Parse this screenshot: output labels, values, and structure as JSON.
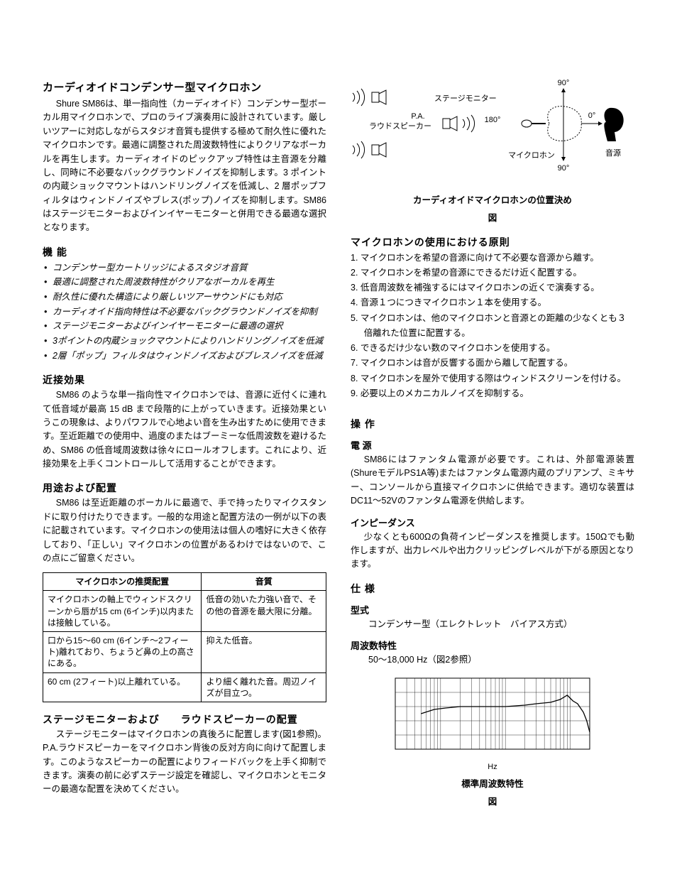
{
  "left": {
    "title0": "カーディオイドコンデンサー型マイクロホン",
    "para0": "Shure SM86は、単一指向性（カーディオイド）コンデンサー型ボーカル用マイクロホンで、プロのライブ演奏用に設計されています。厳しいツアーに対応しながらスタジオ音質も提供する極めて耐久性に優れたマイクロホンです。最適に調整された周波数特性によりクリアなボーカルを再生します。カーディオイドのピックアップ特性は主音源を分離し、同時に不必要なバックグラウンドノイズを抑制します。3 ポイントの内蔵ショックマウントはハンドリングノイズを低減し、2 層ポップフィルタはウィンドノイズやブレス(ポップ)ノイズを抑制します。SM86 はステージモニターおよびインイヤーモニターと併用できる最適な選択となります。",
    "title1": "機 能",
    "features": [
      "コンデンサー型カートリッジによるスタジオ音質",
      "最適に調整された周波数特性がクリアなボーカルを再生",
      "耐久性に優れた構造により厳しいツアーサウンドにも対応",
      "カーディオイド指向特性は不必要なバックグラウンドノイズを抑制",
      "ステージモニターおよびインイヤーモニターに最適の選択",
      "3ポイントの内蔵ショックマウントによりハンドリングノイズを低減",
      "2層「ポップ」フィルタはウィンドノイズおよびブレスノイズを低減"
    ],
    "title2": "近接効果",
    "para2": "SM86 のような単一指向性マイクロホンでは、音源に近付くに連れて低音域が最高 15 dB まで段階的に上がっていきます。近接効果というこの現象は、よりパワフルで心地よい音を生み出すために使用できます。至近距離での使用中、過度のまたはブーミーな低周波数を避けるため、SM86 の低音域周波数は徐々にロールオフします。これにより、近接効果を上手くコントロールして活用することができます。",
    "title3": "用途および配置",
    "para3": "SM86 は至近距離のボーカルに最適で、手で持ったりマイクスタンドに取り付けたりできます。一般的な用途と配置方法の一例が以下の表に記載されています。マイクロホンの使用法は個人の嗜好に大きく依存しており、「正しい」マイクロホンの位置があるわけではないので、この点にご留意ください。",
    "table": {
      "col1header": "マイクロホンの推奨配置",
      "col2header": "音質",
      "col_widths_pct": [
        56,
        44
      ],
      "rows": [
        [
          "マイクロホンの軸上でウィンドスクリーンから唇が15 cm (6インチ)以内または接触している。",
          "低音の効いた力強い音で、その他の音源を最大限に分離。"
        ],
        [
          "口から15～60 cm (6インチ～2フィート)離れており、ちょうど鼻の上の高さにある。",
          "抑えた低音。"
        ],
        [
          "60 cm (2フィート)以上離れている。",
          "より細く離れた音。周辺ノイズが目立つ。"
        ]
      ]
    },
    "title4": "ステージモニターおよび　　ラウドスピーカーの配置",
    "para4": "ステージモニターはマイクロホンの真後ろに配置します(図1参照)。P.A.ラウドスピーカーをマイクロホン背後の反対方向に向けて配置します。このようなスピーカーの配置によりフィードバックを上手く抑制できます。演奏の前に必ずステージ設定を確認し、マイクロホンとモニターの最適な配置を決めてください。"
  },
  "right": {
    "diagram": {
      "label_monitor": "ステージモニター",
      "label_pa1": "P.A.",
      "label_pa2": "ラウドスピーカー",
      "label_mic": "マイクロホン",
      "label_source": "音源",
      "label_180": "180°",
      "label_90": "90°",
      "label_0": "0°",
      "caption_line1": "カーディオイドマイクロホンの位置決め",
      "caption_line2": "図",
      "stroke": "#000"
    },
    "title0": "マイクロホンの使用における原則",
    "principles": [
      "マイクロホンを希望の音源に向けて不必要な音源から離す。",
      "マイクロホンを希望の音源にできるだけ近く配置する。",
      "低音周波数を補強するにはマイクロホンの近くで演奏する。",
      "音源１つにつきマイクロホン１本を使用する。",
      "マイクロホンは、他のマイクロホンと音源との距離の少なくとも３倍離れた位置に配置する。",
      "できるだけ少ない数のマイクロホンを使用する。",
      "マイクロホンは音が反響する面から離して配置する。",
      "マイクロホンを屋外で使用する際はウィンドスクリーンを付ける。",
      "必要以上のメカニカルノイズを抑制する。"
    ],
    "title1": "操 作",
    "h_power": "電 源",
    "para_power": "SM86にはファンタム電源が必要です。これは、外部電源装置(ShureモデルPS1A等)またはファンタム電源内蔵のプリアンプ、ミキサー、コンソールから直接マイクロホンに供給できます。適切な装置はDC11～52Vのファンタム電源を供給します。",
    "h_imp": "インピーダンス",
    "para_imp": "少なくとも600Ωの負荷インピーダンスを推奨します。150Ωでも動作しますが、出力レベルや出力クリッピングレベルが下がる原因となります。",
    "title2": "仕 様",
    "h_type": "型式",
    "p_type": "コンデンサー型（エレクトレット　バイアス方式）",
    "h_freq": "周波数特性",
    "p_freq": "50～18,000 Hz（図2参照）",
    "chart": {
      "xaxis_label": "Hz",
      "caption_line1": "標準周波数特性",
      "caption_line2": "図",
      "axis_color": "#000",
      "grid_color": "#000",
      "curve_color": "#000",
      "background_color": "#ffffff",
      "line_width": 1,
      "curve_width": 1.3,
      "x_decades": [
        20,
        100,
        1000,
        10000,
        20000
      ],
      "y_range_db": [
        -30,
        20
      ],
      "y_grid_step_db": 10,
      "response_points": [
        {
          "hz": 50,
          "db": -5
        },
        {
          "hz": 80,
          "db": -2
        },
        {
          "hz": 120,
          "db": -1
        },
        {
          "hz": 200,
          "db": 0
        },
        {
          "hz": 500,
          "db": 0
        },
        {
          "hz": 1000,
          "db": 0
        },
        {
          "hz": 2000,
          "db": 1
        },
        {
          "hz": 3000,
          "db": 2
        },
        {
          "hz": 5000,
          "db": 3
        },
        {
          "hz": 7000,
          "db": 5
        },
        {
          "hz": 9000,
          "db": 8
        },
        {
          "hz": 11000,
          "db": 4
        },
        {
          "hz": 13000,
          "db": 2
        },
        {
          "hz": 16000,
          "db": -4
        },
        {
          "hz": 18000,
          "db": -10
        },
        {
          "hz": 20000,
          "db": -18
        }
      ]
    }
  }
}
